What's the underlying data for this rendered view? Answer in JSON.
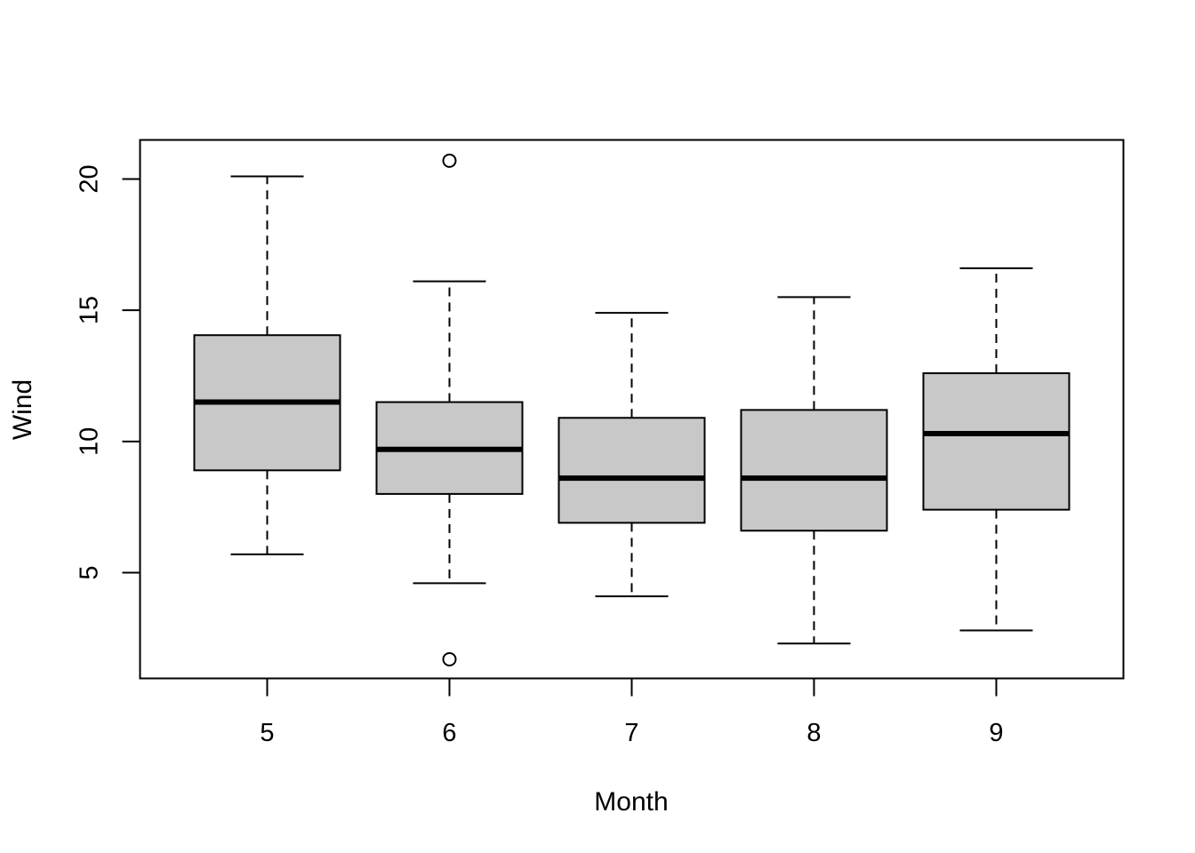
{
  "chart_data": {
    "type": "boxplot",
    "xlabel": "Month",
    "ylabel": "Wind",
    "categories": [
      "5",
      "6",
      "7",
      "8",
      "9"
    ],
    "ylim": [
      1.0,
      21.5
    ],
    "yticks": [
      5,
      10,
      15,
      20
    ],
    "grid": false,
    "box_color": "#c8c8c8",
    "line_color": "#000000",
    "boxes": [
      {
        "category": "5",
        "whisker_low": 5.7,
        "q1": 8.9,
        "median": 11.5,
        "q3": 14.05,
        "whisker_high": 20.1,
        "outliers": []
      },
      {
        "category": "6",
        "whisker_low": 4.6,
        "q1": 8.0,
        "median": 9.7,
        "q3": 11.5,
        "whisker_high": 16.1,
        "outliers": [
          20.7,
          1.7
        ]
      },
      {
        "category": "7",
        "whisker_low": 4.1,
        "q1": 6.9,
        "median": 8.6,
        "q3": 10.9,
        "whisker_high": 14.9,
        "outliers": []
      },
      {
        "category": "8",
        "whisker_low": 2.3,
        "q1": 6.6,
        "median": 8.6,
        "q3": 11.2,
        "whisker_high": 15.5,
        "outliers": []
      },
      {
        "category": "9",
        "whisker_low": 2.8,
        "q1": 7.4,
        "median": 10.3,
        "q3": 12.6,
        "whisker_high": 16.6,
        "outliers": []
      }
    ]
  }
}
